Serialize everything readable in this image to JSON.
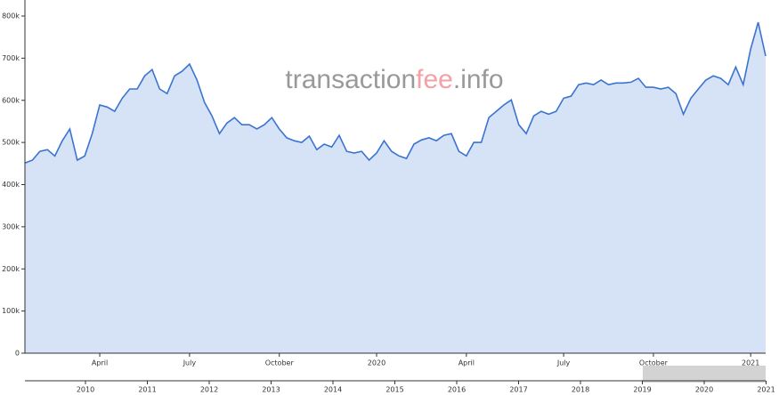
{
  "chart_data": {
    "type": "area",
    "watermark": [
      "transaction",
      "fee",
      ".info"
    ],
    "categories": [
      null,
      null,
      null,
      null,
      null,
      null,
      null,
      null,
      null,
      null,
      "April",
      null,
      null,
      null,
      null,
      null,
      null,
      null,
      null,
      null,
      null,
      null,
      "July",
      null,
      null,
      null,
      null,
      null,
      null,
      null,
      null,
      null,
      null,
      null,
      "October",
      null,
      null,
      null,
      null,
      null,
      null,
      null,
      null,
      null,
      null,
      null,
      null,
      "2020",
      null,
      null,
      null,
      null,
      null,
      null,
      null,
      null,
      null,
      null,
      null,
      "April",
      null,
      null,
      null,
      null,
      null,
      null,
      null,
      null,
      null,
      null,
      null,
      null,
      "July",
      null,
      null,
      null,
      null,
      null,
      null,
      null,
      null,
      null,
      null,
      null,
      "October",
      null,
      null,
      null,
      null,
      null,
      null,
      null,
      null,
      null,
      null,
      null,
      null,
      "2021",
      null,
      null
    ],
    "values": [
      451000,
      458000,
      479000,
      483000,
      468000,
      504000,
      532000,
      458000,
      468000,
      521000,
      589000,
      584000,
      574000,
      605000,
      627000,
      627000,
      658000,
      673000,
      627000,
      616000,
      658000,
      669000,
      686000,
      648000,
      595000,
      563000,
      521000,
      546000,
      559000,
      542000,
      542000,
      532000,
      542000,
      559000,
      532000,
      511000,
      504000,
      500000,
      515000,
      483000,
      496000,
      489000,
      517000,
      479000,
      475000,
      479000,
      458000,
      475000,
      504000,
      479000,
      468000,
      462000,
      496000,
      506000,
      511000,
      504000,
      517000,
      521000,
      479000,
      468000,
      500000,
      500000,
      559000,
      574000,
      589000,
      601000,
      542000,
      521000,
      563000,
      574000,
      567000,
      574000,
      605000,
      610000,
      637000,
      641000,
      637000,
      648000,
      637000,
      641000,
      641000,
      643000,
      652000,
      631000,
      631000,
      627000,
      631000,
      616000,
      567000,
      605000,
      627000,
      648000,
      658000,
      652000,
      637000,
      679000,
      637000,
      722000,
      785000,
      705000
    ],
    "color": "#3a74d0",
    "fill": "#d6e3f7",
    "ylim": [
      0,
      800000
    ],
    "yticks": [
      0,
      {
        "value": 100000,
        "label": "100k"
      },
      {
        "value": 200000,
        "label": "200k"
      },
      {
        "value": 300000,
        "label": "300k"
      },
      {
        "value": 400000,
        "label": "400k"
      },
      {
        "value": 500000,
        "label": "500k"
      },
      {
        "value": 600000,
        "label": "600k"
      },
      {
        "value": 700000,
        "label": "700k"
      },
      {
        "value": 800000,
        "label": "800k"
      }
    ],
    "grid": false,
    "navigator": {
      "labels": [
        "2010",
        "2011",
        "2012",
        "2013",
        "2014",
        "2015",
        "2016",
        "2017",
        "2018",
        "2019",
        "2020",
        "2021"
      ]
    }
  }
}
